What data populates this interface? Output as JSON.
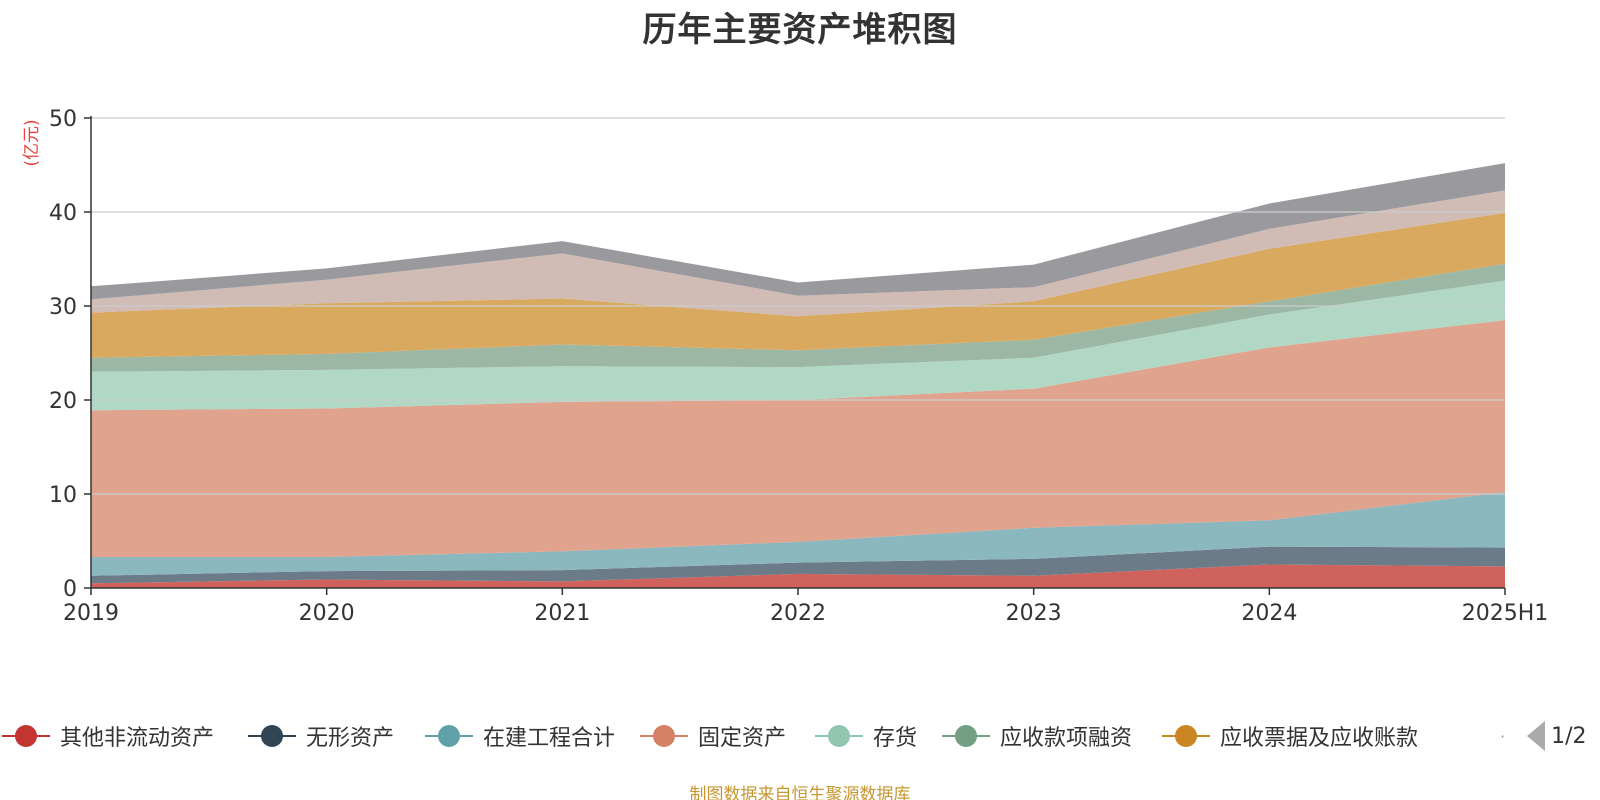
{
  "chart_data": {
    "type": "area",
    "stacked": true,
    "title": "历年主要资产堆积图",
    "ylabel": "(亿元)",
    "xlabel": "",
    "categories": [
      "2019",
      "2020",
      "2021",
      "2022",
      "2023",
      "2024",
      "2025H1"
    ],
    "ylim": [
      0,
      50
    ],
    "yticks": [
      0,
      10,
      20,
      30,
      40,
      50
    ],
    "grid": true,
    "legend_position": "bottom",
    "series": [
      {
        "name": "其他非流动资产",
        "color": "#d0625d",
        "values": [
          0.5,
          0.9,
          0.7,
          1.5,
          1.3,
          2.5,
          2.3
        ]
      },
      {
        "name": "无形资产",
        "color": "#6b7b87",
        "values": [
          0.8,
          0.9,
          1.2,
          1.2,
          1.8,
          1.9,
          2.0
        ]
      },
      {
        "name": "在建工程合计",
        "color": "#8bb8bf",
        "values": [
          2.0,
          1.5,
          2.0,
          2.2,
          3.3,
          2.8,
          5.9
        ]
      },
      {
        "name": "固定资产",
        "color": "#dfa38e",
        "values": [
          15.6,
          15.8,
          15.9,
          15.1,
          14.8,
          18.4,
          18.3
        ]
      },
      {
        "name": "存货",
        "color": "#b1d8c5",
        "values": [
          4.1,
          4.1,
          3.8,
          3.5,
          3.3,
          3.5,
          4.2
        ]
      },
      {
        "name": "应收款项融资",
        "color": "#9cb7a3",
        "values": [
          1.5,
          1.7,
          2.3,
          1.8,
          1.9,
          1.4,
          1.8
        ]
      },
      {
        "name": "应收票据及应收账款",
        "color": "#d9a95f",
        "values": [
          4.8,
          5.4,
          4.9,
          3.6,
          4.1,
          5.6,
          5.4
        ]
      },
      {
        "name": "",
        "color": "#d1bbb5",
        "values": [
          1.4,
          2.5,
          4.8,
          2.2,
          1.5,
          2.1,
          2.4
        ]
      },
      {
        "name": "",
        "color": "#9a999d",
        "values": [
          1.4,
          1.2,
          1.3,
          1.4,
          2.4,
          2.7,
          2.9
        ]
      }
    ]
  },
  "legend": {
    "page_indicator": "1/2",
    "page_separator": "·"
  },
  "footnote": "制图数据来自恒生聚源数据库",
  "colors": {
    "axis": "#333333",
    "grid": "#cccccc",
    "ylabel": "#e8413c",
    "footnote": "#c8962e",
    "legend_markers": [
      "#c23531",
      "#2f4554",
      "#61a0a8",
      "#d48265",
      "#91c7ae",
      "#749f83",
      "#ca8622"
    ]
  }
}
